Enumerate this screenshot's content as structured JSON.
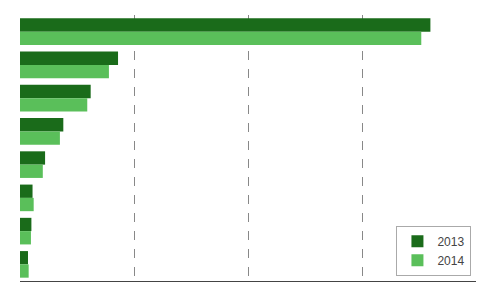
{
  "chart_data": {
    "type": "bar",
    "orientation": "horizontal",
    "categories": [
      null,
      null,
      null,
      null,
      null,
      null,
      null,
      null
    ],
    "series": [
      {
        "name": "2013",
        "color": "#1a6b1a",
        "values": [
          1800,
          430,
          310,
          190,
          110,
          55,
          50,
          35
        ]
      },
      {
        "name": "2014",
        "color": "#5abf5a",
        "values": [
          1760,
          390,
          295,
          175,
          100,
          60,
          48,
          38
        ]
      }
    ],
    "xlim": [
      0,
      2000
    ],
    "xticks": [
      0,
      500,
      1000,
      1500,
      2000
    ],
    "grid": true,
    "legend": "lower right",
    "tick_labels": false
  }
}
